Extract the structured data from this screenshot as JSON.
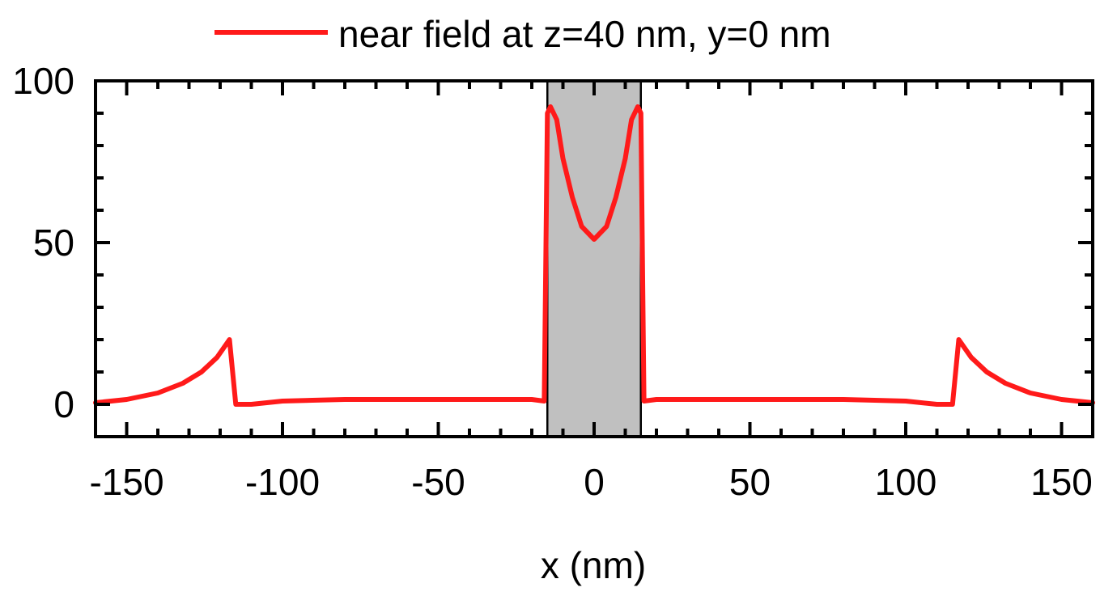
{
  "chart_data": {
    "type": "line",
    "title": "",
    "xlabel": "x (nm)",
    "ylabel": "",
    "xlim": [
      -160,
      160
    ],
    "ylim": [
      -10,
      100
    ],
    "x_ticks": [
      -150,
      -100,
      -50,
      0,
      50,
      100,
      150
    ],
    "x_tick_labels": [
      "-150",
      "-100",
      "-50",
      "0",
      "50",
      "100",
      "150"
    ],
    "y_ticks": [
      0,
      50,
      100
    ],
    "y_tick_labels": [
      "0",
      "50",
      "100"
    ],
    "grid": false,
    "legend_position": "top",
    "shaded_region": {
      "x": [
        -15,
        15
      ],
      "color": "#c0c0c0"
    },
    "series": [
      {
        "name": "near field at z=40 nm, y=0 nm",
        "color": "#ff1a1a",
        "x": [
          -160,
          -150,
          -140,
          -132,
          -126,
          -121,
          -117,
          -115,
          -110,
          -100,
          -80,
          -60,
          -40,
          -20,
          -16,
          -15,
          -14,
          -12,
          -10,
          -7,
          -4,
          0,
          4,
          7,
          10,
          12,
          14,
          15,
          16,
          20,
          40,
          60,
          80,
          100,
          110,
          115,
          117,
          121,
          126,
          132,
          140,
          150,
          160
        ],
        "y": [
          0.5,
          1.5,
          3.5,
          6.5,
          10,
          14.5,
          20,
          0,
          0,
          1,
          1.5,
          1.5,
          1.5,
          1.5,
          1,
          90,
          92,
          88,
          76,
          64,
          55,
          51,
          55,
          64,
          76,
          88,
          92,
          90,
          1,
          1.5,
          1.5,
          1.5,
          1.5,
          1,
          0,
          0,
          20,
          14.5,
          10,
          6.5,
          3.5,
          1.5,
          0.5
        ]
      }
    ]
  }
}
